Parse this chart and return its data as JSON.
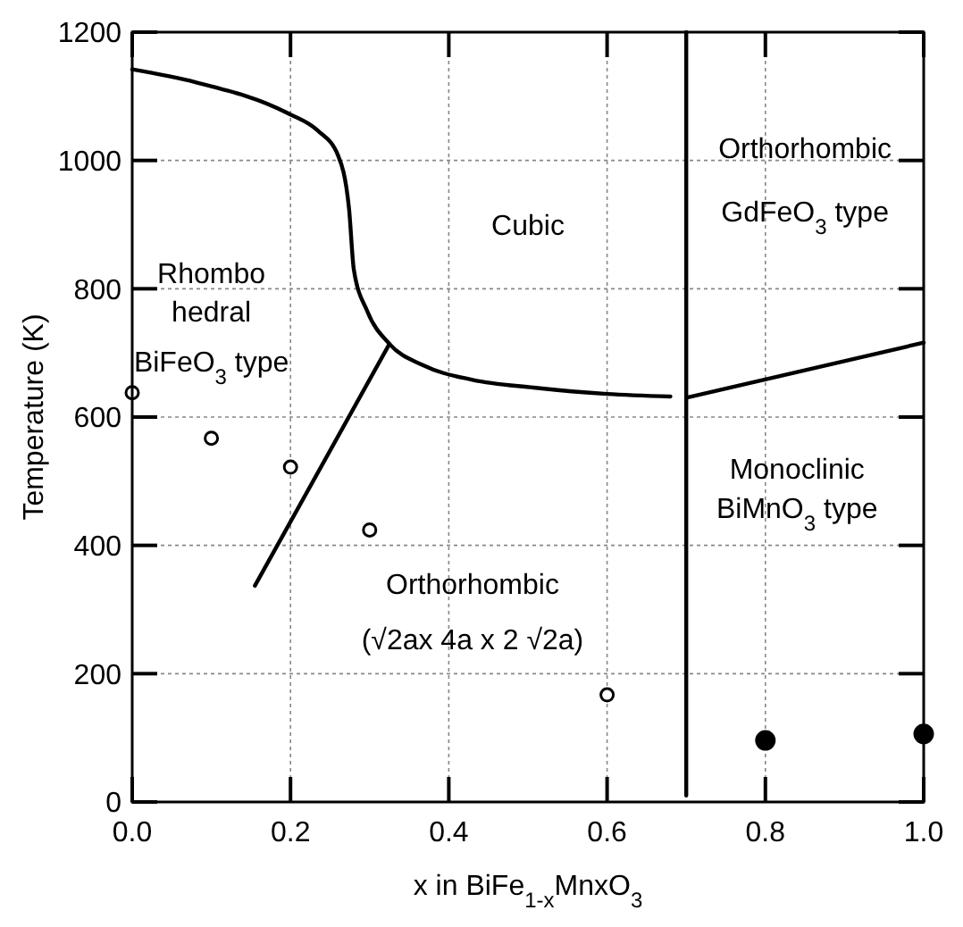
{
  "chart_data": {
    "type": "line",
    "xlabel": "x in BiFe$_{1-x}$MnxO$_{3}$",
    "ylabel": "Temperature (K)",
    "xlim": [
      0,
      1
    ],
    "ylim": [
      0,
      1200
    ],
    "xticks": [
      {
        "value": 0,
        "label": "0.0"
      },
      0.2,
      0.4,
      0.6,
      0.8,
      {
        "value": 1,
        "label": "1.0"
      }
    ],
    "yticks": [
      0,
      200,
      400,
      600,
      800,
      1000,
      1200
    ],
    "grid": true,
    "marker": "none",
    "line_style": "solid",
    "series": [
      {
        "color": "#000000",
        "x": [
          0,
          0.08,
          0.196,
          0.235,
          0.26,
          0.274,
          0.28,
          0.297,
          0.325,
          0.367,
          0.43,
          0.507,
          0.6,
          0.68
        ],
        "values": [
          1142,
          1122,
          1074,
          1046,
          1008,
          924,
          830,
          765,
          714,
          681,
          658,
          646,
          636,
          632
        ]
      },
      {
        "color": "#000000",
        "x": [
          0.7,
          1.0
        ],
        "values": [
          630,
          716
        ]
      },
      {
        "color": "#000000",
        "x": [
          0.155,
          0.325
        ],
        "values": [
          337,
          714
        ]
      },
      {
        "color": "#000000",
        "x": [
          0.7,
          0.7
        ],
        "values": [
          10,
          1200
        ]
      },
      {
        "type": "scatter",
        "marker": "circle",
        "color": "#ffffff",
        "x": [
          0,
          0.1,
          0.2,
          0.3,
          0.6
        ],
        "values": [
          638,
          567,
          522,
          424,
          167
        ]
      },
      {
        "type": "scatter",
        "marker": "circle",
        "color": "#000000",
        "x": [
          0.8,
          1.0
        ],
        "values": [
          96,
          106
        ]
      }
    ],
    "annotations": [
      "Cubic",
      "Orthorhombic",
      "GdFeO$_{3}$ type",
      "Rhombo",
      "hedral",
      "BiFeO$_{3}$ type",
      "Monoclinic",
      "BiMnO$_{3}$ type",
      "Orthorhombic",
      "(√2ax 4a x 2 √2a)"
    ]
  }
}
